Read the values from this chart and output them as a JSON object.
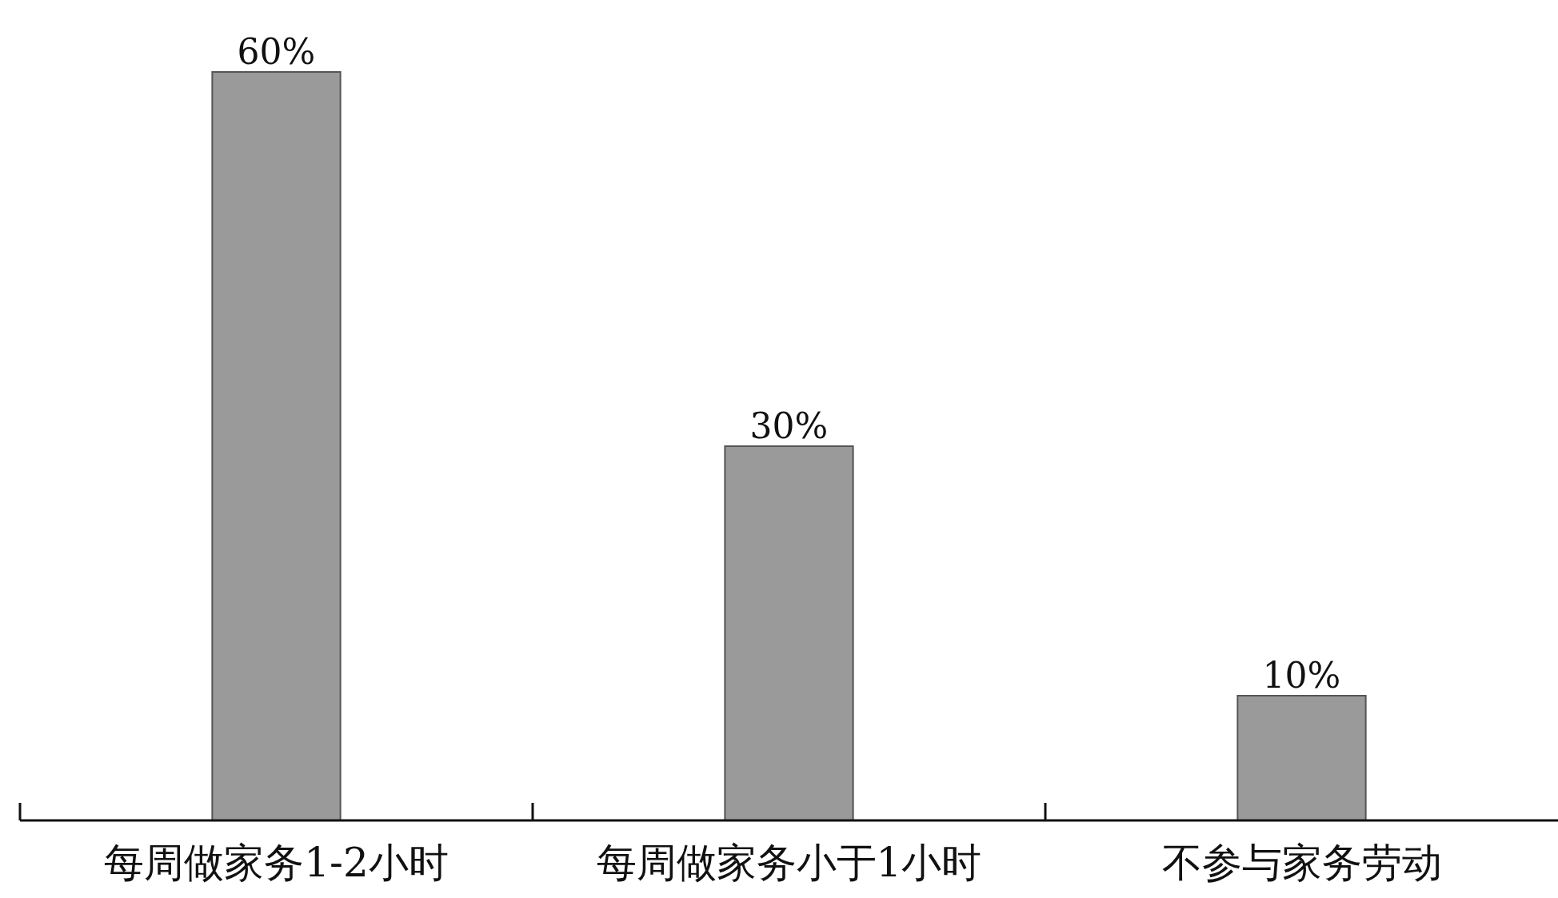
{
  "chart_data": {
    "type": "bar",
    "categories": [
      "每周做家务1-2小时",
      "每周做家务小于1小时",
      "不参与家务劳动"
    ],
    "values": [
      60,
      30,
      10
    ],
    "value_labels": [
      "60%",
      "30%",
      "10%"
    ],
    "color": "#9a9a9a"
  }
}
